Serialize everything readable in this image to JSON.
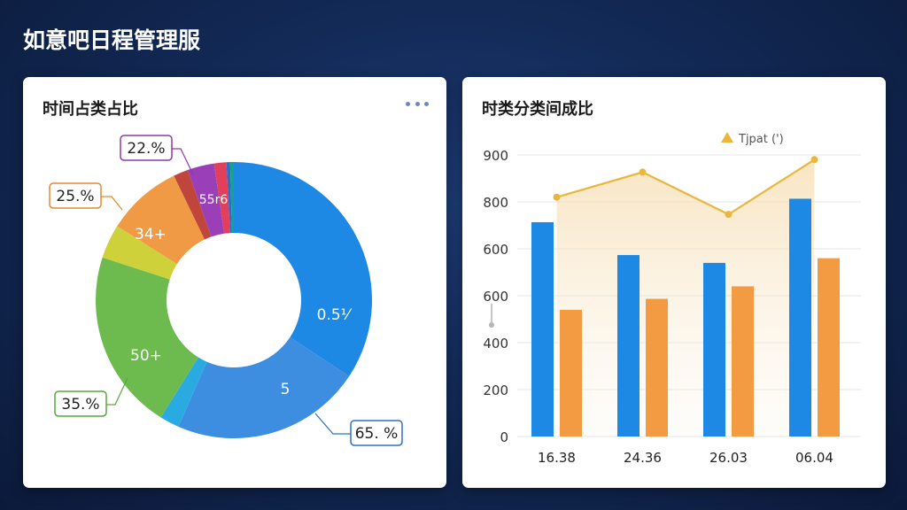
{
  "app": {
    "title": "如意吧日程管理服"
  },
  "pie_card": {
    "title": "时间占类占比"
  },
  "bar_card": {
    "title": "时类分类间成比"
  },
  "chart_data": [
    {
      "type": "pie",
      "variant": "donut",
      "title": "时间占类占比",
      "slices": [
        {
          "color": "#1e88e5",
          "value": 120
        },
        {
          "color": "#3d8ee0",
          "value": 78
        },
        {
          "color": "#29abe2",
          "value": 8
        },
        {
          "color": "#6dbb4e",
          "value": 74
        },
        {
          "color": "#cfd13b",
          "value": 14
        },
        {
          "color": "#f09a45",
          "value": 31
        },
        {
          "color": "#c0463c",
          "value": 6
        },
        {
          "color": "#9b3fb8",
          "value": 11
        },
        {
          "color": "#e2405a",
          "value": 5
        },
        {
          "color": "#2a6dcc",
          "value": 1.5
        },
        {
          "color": "#12a58a",
          "value": 1.5
        }
      ],
      "inner_labels": [
        {
          "text": "0.5⅟"
        },
        {
          "text": "5"
        },
        {
          "text": "50+"
        },
        {
          "text": "34+"
        },
        {
          "text": "55r6"
        }
      ],
      "callouts": [
        {
          "text": "22.%",
          "color": "#8e3aa8"
        },
        {
          "text": "25.%",
          "color": "#e08a2e"
        },
        {
          "text": "35.%",
          "color": "#5aa63e"
        },
        {
          "text": "65. %",
          "color": "#2e6fc0"
        }
      ]
    },
    {
      "type": "bar",
      "title": "时类分类间成比",
      "categories": [
        "16.38",
        "24.36",
        "26.03",
        "06.04"
      ],
      "series": [
        {
          "values": [
            685,
            580,
            555,
            760
          ],
          "color": "#1e88e5"
        },
        {
          "values": [
            405,
            440,
            480,
            570
          ],
          "color": "#f29b42"
        }
      ],
      "line": {
        "name": "Tjpat (')",
        "values": [
          765,
          845,
          710,
          885
        ],
        "color": "#e8b73c"
      },
      "y_ticks": [
        "900",
        "800",
        "600",
        "600",
        "400",
        "200",
        "0"
      ],
      "ylim": [
        0,
        900
      ],
      "grid": true,
      "legend": "top-right"
    }
  ]
}
